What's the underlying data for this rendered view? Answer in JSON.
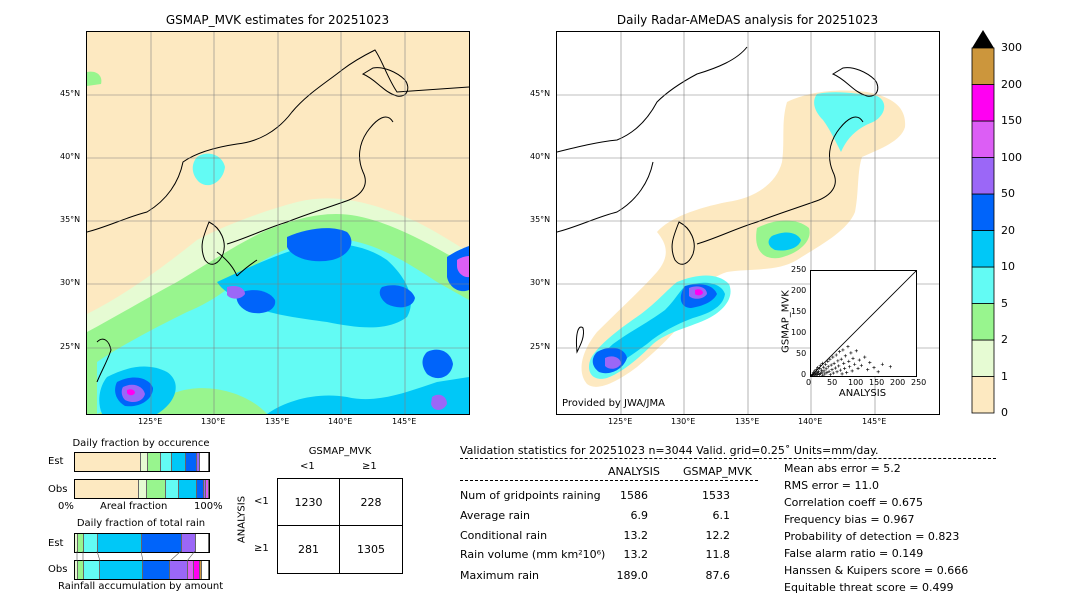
{
  "left_map": {
    "title": "GSMAP_MVK estimates for 20251023",
    "lat_ticks": [
      "45°N",
      "40°N",
      "35°N",
      "30°N",
      "25°N"
    ],
    "lon_ticks": [
      "125°E",
      "130°E",
      "135°E",
      "140°E",
      "145°E"
    ]
  },
  "right_map": {
    "title": "Daily Radar-AMeDAS analysis for 20251023",
    "lat_ticks": [
      "45°N",
      "40°N",
      "35°N",
      "30°N",
      "25°N"
    ],
    "lon_ticks": [
      "125°E",
      "130°E",
      "135°E",
      "140°E",
      "145°E"
    ],
    "credit": "Provided by JWA/JMA"
  },
  "colorbar": {
    "labels": [
      "0",
      "1",
      "2",
      "5",
      "10",
      "20",
      "50",
      "100",
      "150",
      "200",
      "300"
    ],
    "colors": [
      "#fde9c1",
      "#e6fbd3",
      "#98f58e",
      "#63fbf4",
      "#00c8f7",
      "#0064fa",
      "#9b67f7",
      "#dc5ef5",
      "#ff00f2",
      "#cc963c"
    ]
  },
  "scatter": {
    "xlabel": "ANALYSIS",
    "ylabel": "GSMAP_MVK",
    "ticks": [
      "0",
      "50",
      "100",
      "150",
      "200",
      "250"
    ],
    "points": [
      [
        2,
        1
      ],
      [
        3,
        4
      ],
      [
        5,
        2
      ],
      [
        6,
        8
      ],
      [
        8,
        3
      ],
      [
        9,
        12
      ],
      [
        10,
        6
      ],
      [
        12,
        2
      ],
      [
        13,
        15
      ],
      [
        14,
        9
      ],
      [
        15,
        4
      ],
      [
        16,
        20
      ],
      [
        17,
        7
      ],
      [
        18,
        11
      ],
      [
        20,
        3
      ],
      [
        21,
        18
      ],
      [
        22,
        25
      ],
      [
        23,
        6
      ],
      [
        25,
        14
      ],
      [
        26,
        9
      ],
      [
        27,
        30
      ],
      [
        28,
        2
      ],
      [
        30,
        21
      ],
      [
        31,
        12
      ],
      [
        33,
        5
      ],
      [
        35,
        28
      ],
      [
        36,
        17
      ],
      [
        38,
        8
      ],
      [
        40,
        35
      ],
      [
        41,
        22
      ],
      [
        43,
        11
      ],
      [
        45,
        40
      ],
      [
        46,
        3
      ],
      [
        48,
        26
      ],
      [
        50,
        15
      ],
      [
        52,
        45
      ],
      [
        53,
        7
      ],
      [
        55,
        30
      ],
      [
        58,
        19
      ],
      [
        60,
        50
      ],
      [
        62,
        10
      ],
      [
        64,
        36
      ],
      [
        66,
        24
      ],
      [
        68,
        58
      ],
      [
        70,
        14
      ],
      [
        72,
        40
      ],
      [
        74,
        5
      ],
      [
        76,
        62
      ],
      [
        78,
        30
      ],
      [
        80,
        18
      ],
      [
        82,
        48
      ],
      [
        85,
        8
      ],
      [
        88,
        70
      ],
      [
        90,
        35
      ],
      [
        92,
        22
      ],
      [
        95,
        55
      ],
      [
        98,
        12
      ],
      [
        100,
        42
      ],
      [
        104,
        28
      ],
      [
        108,
        60
      ],
      [
        112,
        18
      ],
      [
        115,
        38
      ],
      [
        120,
        25
      ],
      [
        128,
        45
      ],
      [
        135,
        15
      ],
      [
        140,
        32
      ],
      [
        150,
        20
      ],
      [
        160,
        10
      ],
      [
        170,
        28
      ],
      [
        189,
        22
      ]
    ]
  },
  "occurrence": {
    "title": "Daily fraction by occurence",
    "row_labels": [
      "Est",
      "Obs"
    ],
    "axis_left": "0%",
    "axis_mid": "Areal fraction",
    "axis_right": "100%",
    "est": [
      {
        "f": 0.495,
        "c": "#fde9c1"
      },
      {
        "f": 0.05,
        "c": "#e6fbd3"
      },
      {
        "f": 0.1,
        "c": "#98f58e"
      },
      {
        "f": 0.08,
        "c": "#63fbf4"
      },
      {
        "f": 0.1,
        "c": "#00c8f7"
      },
      {
        "f": 0.085,
        "c": "#0064fa"
      },
      {
        "f": 0.02,
        "c": "#9b67f7"
      },
      {
        "f": 0.07,
        "c": "#ffffff"
      }
    ],
    "obs": [
      {
        "f": 0.48,
        "c": "#fde9c1"
      },
      {
        "f": 0.06,
        "c": "#e6fbd3"
      },
      {
        "f": 0.14,
        "c": "#98f58e"
      },
      {
        "f": 0.1,
        "c": "#63fbf4"
      },
      {
        "f": 0.13,
        "c": "#00c8f7"
      },
      {
        "f": 0.05,
        "c": "#0064fa"
      },
      {
        "f": 0.02,
        "c": "#9b67f7"
      },
      {
        "f": 0.02,
        "c": "#dc5ef5"
      }
    ]
  },
  "accumulation": {
    "title": "Daily fraction of total rain",
    "row_labels": [
      "Est",
      "Obs"
    ],
    "footer": "Rainfall accumulation by amount",
    "est": [
      {
        "f": 0.02,
        "c": "#e6fbd3"
      },
      {
        "f": 0.05,
        "c": "#98f58e"
      },
      {
        "f": 0.1,
        "c": "#63fbf4"
      },
      {
        "f": 0.33,
        "c": "#00c8f7"
      },
      {
        "f": 0.3,
        "c": "#0064fa"
      },
      {
        "f": 0.1,
        "c": "#9b67f7"
      },
      {
        "f": 0.1,
        "c": "#ffffff"
      }
    ],
    "obs": [
      {
        "f": 0.02,
        "c": "#e6fbd3"
      },
      {
        "f": 0.05,
        "c": "#98f58e"
      },
      {
        "f": 0.12,
        "c": "#63fbf4"
      },
      {
        "f": 0.32,
        "c": "#00c8f7"
      },
      {
        "f": 0.2,
        "c": "#0064fa"
      },
      {
        "f": 0.13,
        "c": "#9b67f7"
      },
      {
        "f": 0.05,
        "c": "#dc5ef5"
      },
      {
        "f": 0.04,
        "c": "#ff00f2"
      },
      {
        "f": 0.02,
        "c": "#cc963c"
      },
      {
        "f": 0.05,
        "c": "#ffffff"
      }
    ]
  },
  "contingency": {
    "col_title": "GSMAP_MVK",
    "row_title": "ANALYSIS",
    "col_labels": [
      "<1",
      "≥1"
    ],
    "row_labels": [
      "<1",
      "≥1"
    ],
    "cells": [
      [
        "1230",
        "228"
      ],
      [
        "281",
        "1305"
      ]
    ]
  },
  "validation": {
    "header": "Validation statistics for 20251023  n=3044 Valid. grid=0.25˚ Units=mm/day.",
    "col_analysis": "ANALYSIS",
    "col_gsmap": "GSMAP_MVK",
    "rows": [
      {
        "label": "Num of gridpoints raining",
        "analysis": "1586",
        "gsmap": "1533"
      },
      {
        "label": "Average rain",
        "analysis": "6.9",
        "gsmap": "6.1"
      },
      {
        "label": "Conditional rain",
        "analysis": "13.2",
        "gsmap": "12.2"
      },
      {
        "label": "Rain volume (mm km²10⁶)",
        "analysis": "13.2",
        "gsmap": "11.8"
      },
      {
        "label": "Maximum rain",
        "analysis": "189.0",
        "gsmap": "87.6"
      }
    ],
    "scores": [
      "Mean abs error =    5.2",
      "RMS error =   11.0",
      "Correlation coeff =  0.675",
      "Frequency bias =  0.967",
      "Probability of detection =  0.823",
      "False alarm ratio =  0.149",
      "Hanssen & Kuipers score =  0.666",
      "Equitable threat score =  0.499"
    ]
  }
}
